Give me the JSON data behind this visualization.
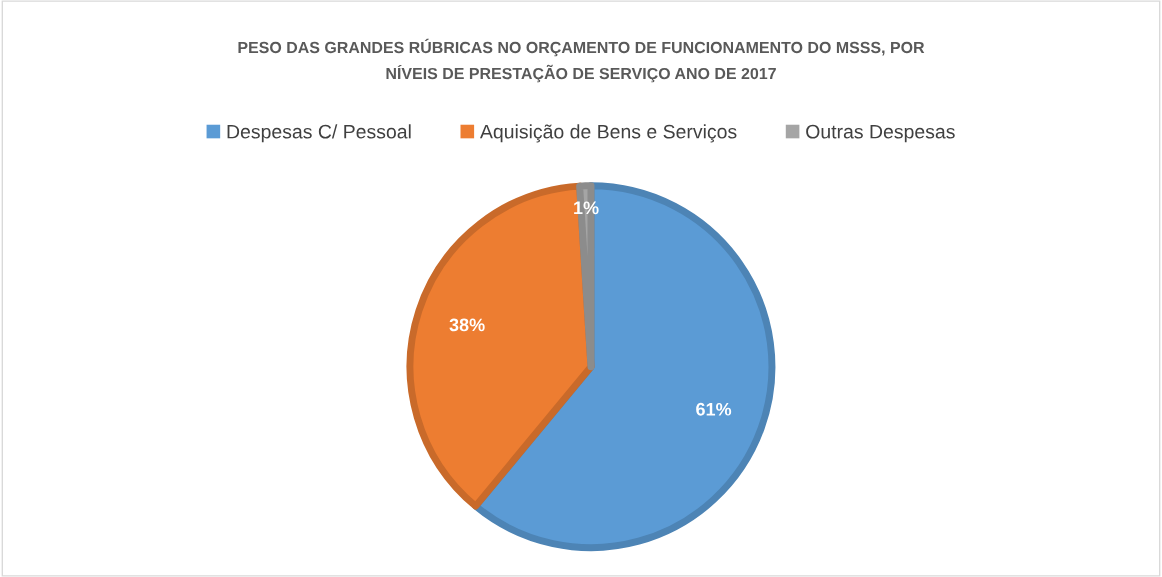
{
  "chart_data": {
    "type": "pie",
    "title": "PESO DAS GRANDES RÚBRICAS NO ORÇAMENTO DE FUNCIONAMENTO DO MSSS, POR\nNÍVEIS DE PRESTAÇÃO DE SERVIÇO ANO DE 2017",
    "categories": [
      "Despesas C/ Pessoal",
      "Aquisição de Bens e Serviços",
      "Outras Despesas"
    ],
    "values": [
      61,
      38,
      1
    ],
    "colors": [
      "#5b9bd5",
      "#ed7d31",
      "#a5a5a5"
    ],
    "value_labels": [
      "61%",
      "38%",
      "1%"
    ],
    "legend": "top"
  }
}
